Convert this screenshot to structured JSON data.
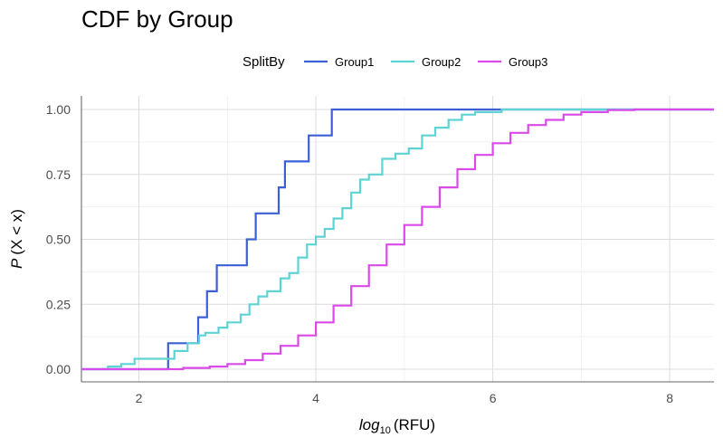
{
  "chart_data": {
    "type": "line",
    "step": true,
    "title": "CDF by Group",
    "xlabel_prefix": "log",
    "xlabel_sub": "10",
    "xlabel_suffix": "(RFU)",
    "ylabel_italic": "P",
    "ylabel_rest": "(X < x)",
    "xlim": [
      1.35,
      8.5
    ],
    "ylim": [
      0,
      1
    ],
    "xticks": [
      2,
      4,
      6,
      8
    ],
    "xtick_labels": [
      "2",
      "4",
      "6",
      "8"
    ],
    "yticks": [
      0,
      0.25,
      0.5,
      0.75,
      1
    ],
    "ytick_labels": [
      "0.00",
      "0.25",
      "0.50",
      "0.75",
      "1.00"
    ],
    "grid": true,
    "legend": {
      "title": "SplitBy",
      "position": "top"
    },
    "series": [
      {
        "name": "Group1",
        "color": "#3d5fd6",
        "x": [
          1.35,
          2.33,
          2.67,
          2.77,
          2.88,
          3.22,
          3.32,
          3.58,
          3.65,
          3.92,
          4.18,
          8.5
        ],
        "y": [
          0,
          0.1,
          0.2,
          0.3,
          0.4,
          0.5,
          0.6,
          0.7,
          0.8,
          0.9,
          1.0,
          1.0
        ]
      },
      {
        "name": "Group2",
        "color": "#5dd3d3",
        "x": [
          1.35,
          1.65,
          1.8,
          1.95,
          2.4,
          2.55,
          2.68,
          2.75,
          2.9,
          3.0,
          3.15,
          3.25,
          3.35,
          3.45,
          3.6,
          3.7,
          3.8,
          3.9,
          4.0,
          4.1,
          4.2,
          4.3,
          4.4,
          4.5,
          4.6,
          4.75,
          4.9,
          5.05,
          5.2,
          5.35,
          5.5,
          5.65,
          5.8,
          5.95,
          6.1,
          6.2,
          8.5
        ],
        "y": [
          0,
          0.01,
          0.02,
          0.04,
          0.07,
          0.1,
          0.13,
          0.14,
          0.16,
          0.18,
          0.21,
          0.25,
          0.28,
          0.3,
          0.35,
          0.37,
          0.43,
          0.48,
          0.51,
          0.54,
          0.58,
          0.62,
          0.68,
          0.73,
          0.75,
          0.81,
          0.83,
          0.85,
          0.9,
          0.93,
          0.96,
          0.98,
          0.99,
          0.99,
          1.0,
          1.0,
          1.0
        ]
      },
      {
        "name": "Group3",
        "color": "#d94ae8",
        "x": [
          1.35,
          2.0,
          2.5,
          2.8,
          3.0,
          3.2,
          3.4,
          3.6,
          3.8,
          4.0,
          4.2,
          4.4,
          4.6,
          4.8,
          5.0,
          5.2,
          5.4,
          5.6,
          5.8,
          6.0,
          6.2,
          6.4,
          6.6,
          6.8,
          7.0,
          7.3,
          7.6,
          8.5
        ],
        "y": [
          0,
          0.0,
          0.005,
          0.01,
          0.02,
          0.035,
          0.06,
          0.09,
          0.13,
          0.18,
          0.245,
          0.32,
          0.4,
          0.48,
          0.555,
          0.625,
          0.7,
          0.77,
          0.825,
          0.87,
          0.91,
          0.94,
          0.96,
          0.98,
          0.99,
          0.998,
          1.0,
          1.0
        ]
      }
    ]
  }
}
